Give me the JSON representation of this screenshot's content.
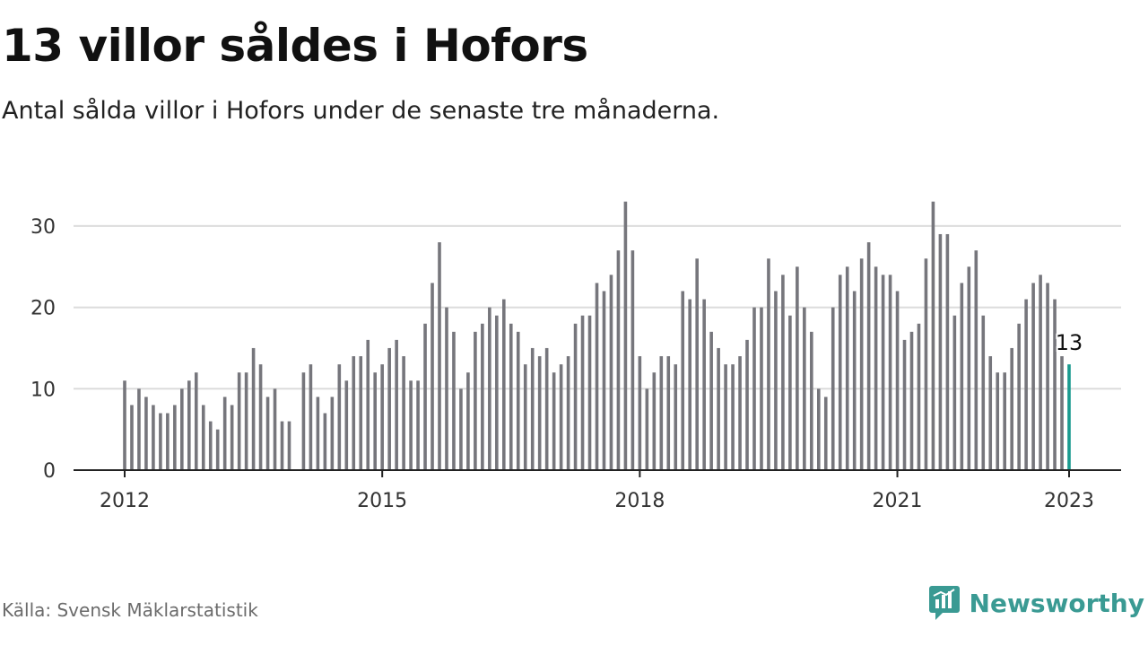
{
  "header": {
    "title": "13 villor såldes i Hofors",
    "subtitle": "Antal sålda villor i Hofors under de senaste tre månaderna."
  },
  "footer": {
    "source": "Källa: Svensk Mäklarstatistik",
    "brand": "Newsworthy",
    "brand_icon": "newsworthy-logo-icon"
  },
  "colors": {
    "bar": "#76767c",
    "highlight": "#1a9a8f",
    "grid": "#dcdcdc",
    "axis": "#222222",
    "brand": "#3a9a93"
  },
  "chart_data": {
    "type": "bar",
    "x_start": "2012-01",
    "x_end": "2023-01",
    "xticks": [
      "2012",
      "2015",
      "2018",
      "2021",
      "2023"
    ],
    "yticks": [
      "0",
      "10",
      "20",
      "30"
    ],
    "ylim": [
      0,
      33
    ],
    "grid": true,
    "values": [
      11,
      8,
      10,
      9,
      8,
      7,
      7,
      8,
      10,
      11,
      12,
      8,
      6,
      5,
      9,
      8,
      12,
      12,
      15,
      13,
      9,
      10,
      6,
      6,
      0,
      12,
      13,
      9,
      7,
      9,
      13,
      11,
      14,
      14,
      16,
      12,
      13,
      15,
      16,
      14,
      11,
      11,
      18,
      23,
      28,
      20,
      17,
      10,
      12,
      17,
      18,
      20,
      19,
      21,
      18,
      17,
      13,
      15,
      14,
      15,
      12,
      13,
      14,
      18,
      19,
      19,
      23,
      22,
      24,
      27,
      33,
      27,
      14,
      10,
      12,
      14,
      14,
      13,
      22,
      21,
      26,
      21,
      17,
      15,
      13,
      13,
      14,
      16,
      20,
      20,
      26,
      22,
      24,
      19,
      25,
      20,
      17,
      10,
      9,
      20,
      24,
      25,
      22,
      26,
      28,
      25,
      24,
      24,
      22,
      16,
      17,
      18,
      26,
      33,
      29,
      29,
      19,
      23,
      25,
      27,
      19,
      14,
      12,
      12,
      15,
      18,
      21,
      23,
      24,
      23,
      21,
      14,
      13
    ],
    "highlight_label": "13"
  }
}
